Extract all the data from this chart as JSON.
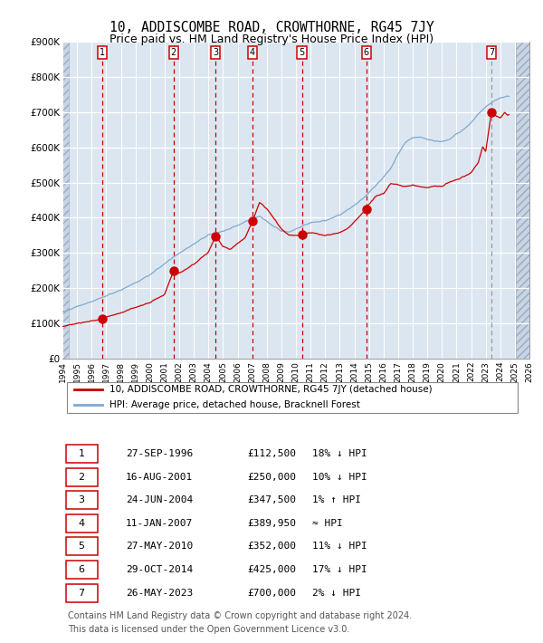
{
  "title": "10, ADDISCOMBE ROAD, CROWTHORNE, RG45 7JY",
  "subtitle": "Price paid vs. HM Land Registry's House Price Index (HPI)",
  "title_fontsize": 10.5,
  "subtitle_fontsize": 9,
  "xlim": [
    1994,
    2026
  ],
  "ylim": [
    0,
    900000
  ],
  "yticks": [
    0,
    100000,
    200000,
    300000,
    400000,
    500000,
    600000,
    700000,
    800000,
    900000
  ],
  "ytick_labels": [
    "£0",
    "£100K",
    "£200K",
    "£300K",
    "£400K",
    "£500K",
    "£600K",
    "£700K",
    "£800K",
    "£900K"
  ],
  "hpi_color": "#7faacc",
  "price_color": "#cc0000",
  "marker_color": "#cc0000",
  "bg_color": "#dce6f1",
  "hatch_bg_color": "#c8d4e3",
  "grid_color": "#ffffff",
  "vline_color": "#cc0000",
  "vline7_color": "#999999",
  "sales": [
    {
      "num": 1,
      "date": 1996.74,
      "price": 112500,
      "label": "27-SEP-1996",
      "hpi_pct": "18% ↓ HPI"
    },
    {
      "num": 2,
      "date": 2001.62,
      "price": 250000,
      "label": "16-AUG-2001",
      "hpi_pct": "10% ↓ HPI"
    },
    {
      "num": 3,
      "date": 2004.48,
      "price": 347500,
      "label": "24-JUN-2004",
      "hpi_pct": "1% ↑ HPI"
    },
    {
      "num": 4,
      "date": 2007.03,
      "price": 389950,
      "label": "11-JAN-2007",
      "hpi_pct": "≈ HPI"
    },
    {
      "num": 5,
      "date": 2010.41,
      "price": 352000,
      "label": "27-MAY-2010",
      "hpi_pct": "11% ↓ HPI"
    },
    {
      "num": 6,
      "date": 2014.83,
      "price": 425000,
      "label": "29-OCT-2014",
      "hpi_pct": "17% ↓ HPI"
    },
    {
      "num": 7,
      "date": 2023.4,
      "price": 700000,
      "label": "26-MAY-2023",
      "hpi_pct": "2% ↓ HPI"
    }
  ],
  "legend_label_price": "10, ADDISCOMBE ROAD, CROWTHORNE, RG45 7JY (detached house)",
  "legend_label_hpi": "HPI: Average price, detached house, Bracknell Forest",
  "footer": "Contains HM Land Registry data © Crown copyright and database right 2024.\nThis data is licensed under the Open Government Licence v3.0.",
  "footer_fontsize": 7,
  "hpi_anchors_x": [
    1994.0,
    1995.0,
    1996.0,
    1997.0,
    1998.0,
    1999.0,
    2000.0,
    2001.0,
    2001.5,
    2002.0,
    2003.0,
    2004.0,
    2005.0,
    2006.0,
    2007.0,
    2007.5,
    2008.0,
    2008.5,
    2009.0,
    2009.5,
    2010.0,
    2010.5,
    2011.0,
    2012.0,
    2013.0,
    2014.0,
    2014.5,
    2015.0,
    2015.5,
    2016.0,
    2016.5,
    2017.0,
    2017.5,
    2018.0,
    2018.5,
    2019.0,
    2019.5,
    2020.0,
    2020.5,
    2021.0,
    2021.5,
    2022.0,
    2022.5,
    2023.0,
    2023.5,
    2024.0,
    2024.5
  ],
  "hpi_anchors_y": [
    132000,
    148000,
    162000,
    178000,
    195000,
    215000,
    238000,
    270000,
    285000,
    300000,
    325000,
    352000,
    362000,
    378000,
    398000,
    403000,
    390000,
    375000,
    363000,
    358000,
    368000,
    378000,
    385000,
    392000,
    408000,
    435000,
    452000,
    472000,
    492000,
    515000,
    540000,
    580000,
    615000,
    628000,
    630000,
    622000,
    618000,
    616000,
    622000,
    638000,
    652000,
    670000,
    695000,
    715000,
    730000,
    740000,
    745000
  ],
  "prop_anchors_x": [
    1994.0,
    1995.0,
    1996.0,
    1996.74,
    1997.0,
    1998.0,
    1999.0,
    2000.0,
    2001.0,
    2001.62,
    2002.0,
    2003.0,
    2004.0,
    2004.48,
    2005.0,
    2005.5,
    2006.0,
    2006.5,
    2007.03,
    2007.5,
    2008.0,
    2008.5,
    2009.0,
    2009.5,
    2010.0,
    2010.41,
    2011.0,
    2011.5,
    2012.0,
    2012.5,
    2013.0,
    2013.5,
    2014.0,
    2014.83,
    2015.0,
    2015.5,
    2016.0,
    2016.5,
    2017.0,
    2017.5,
    2018.0,
    2018.5,
    2019.0,
    2019.5,
    2020.0,
    2020.5,
    2021.0,
    2021.5,
    2022.0,
    2022.5,
    2022.8,
    2023.0,
    2023.4,
    2023.6,
    2023.8,
    2024.0,
    2024.3,
    2024.5
  ],
  "prop_anchors_y": [
    92000,
    100000,
    107000,
    112500,
    118000,
    130000,
    145000,
    160000,
    182000,
    250000,
    242000,
    268000,
    302000,
    347500,
    318000,
    310000,
    328000,
    342000,
    389950,
    445000,
    425000,
    398000,
    368000,
    352000,
    350000,
    352000,
    358000,
    355000,
    350000,
    353000,
    358000,
    368000,
    388000,
    425000,
    438000,
    462000,
    468000,
    498000,
    494000,
    488000,
    493000,
    488000,
    486000,
    490000,
    488000,
    502000,
    508000,
    518000,
    528000,
    558000,
    603000,
    588000,
    700000,
    692000,
    688000,
    683000,
    698000,
    693000
  ]
}
